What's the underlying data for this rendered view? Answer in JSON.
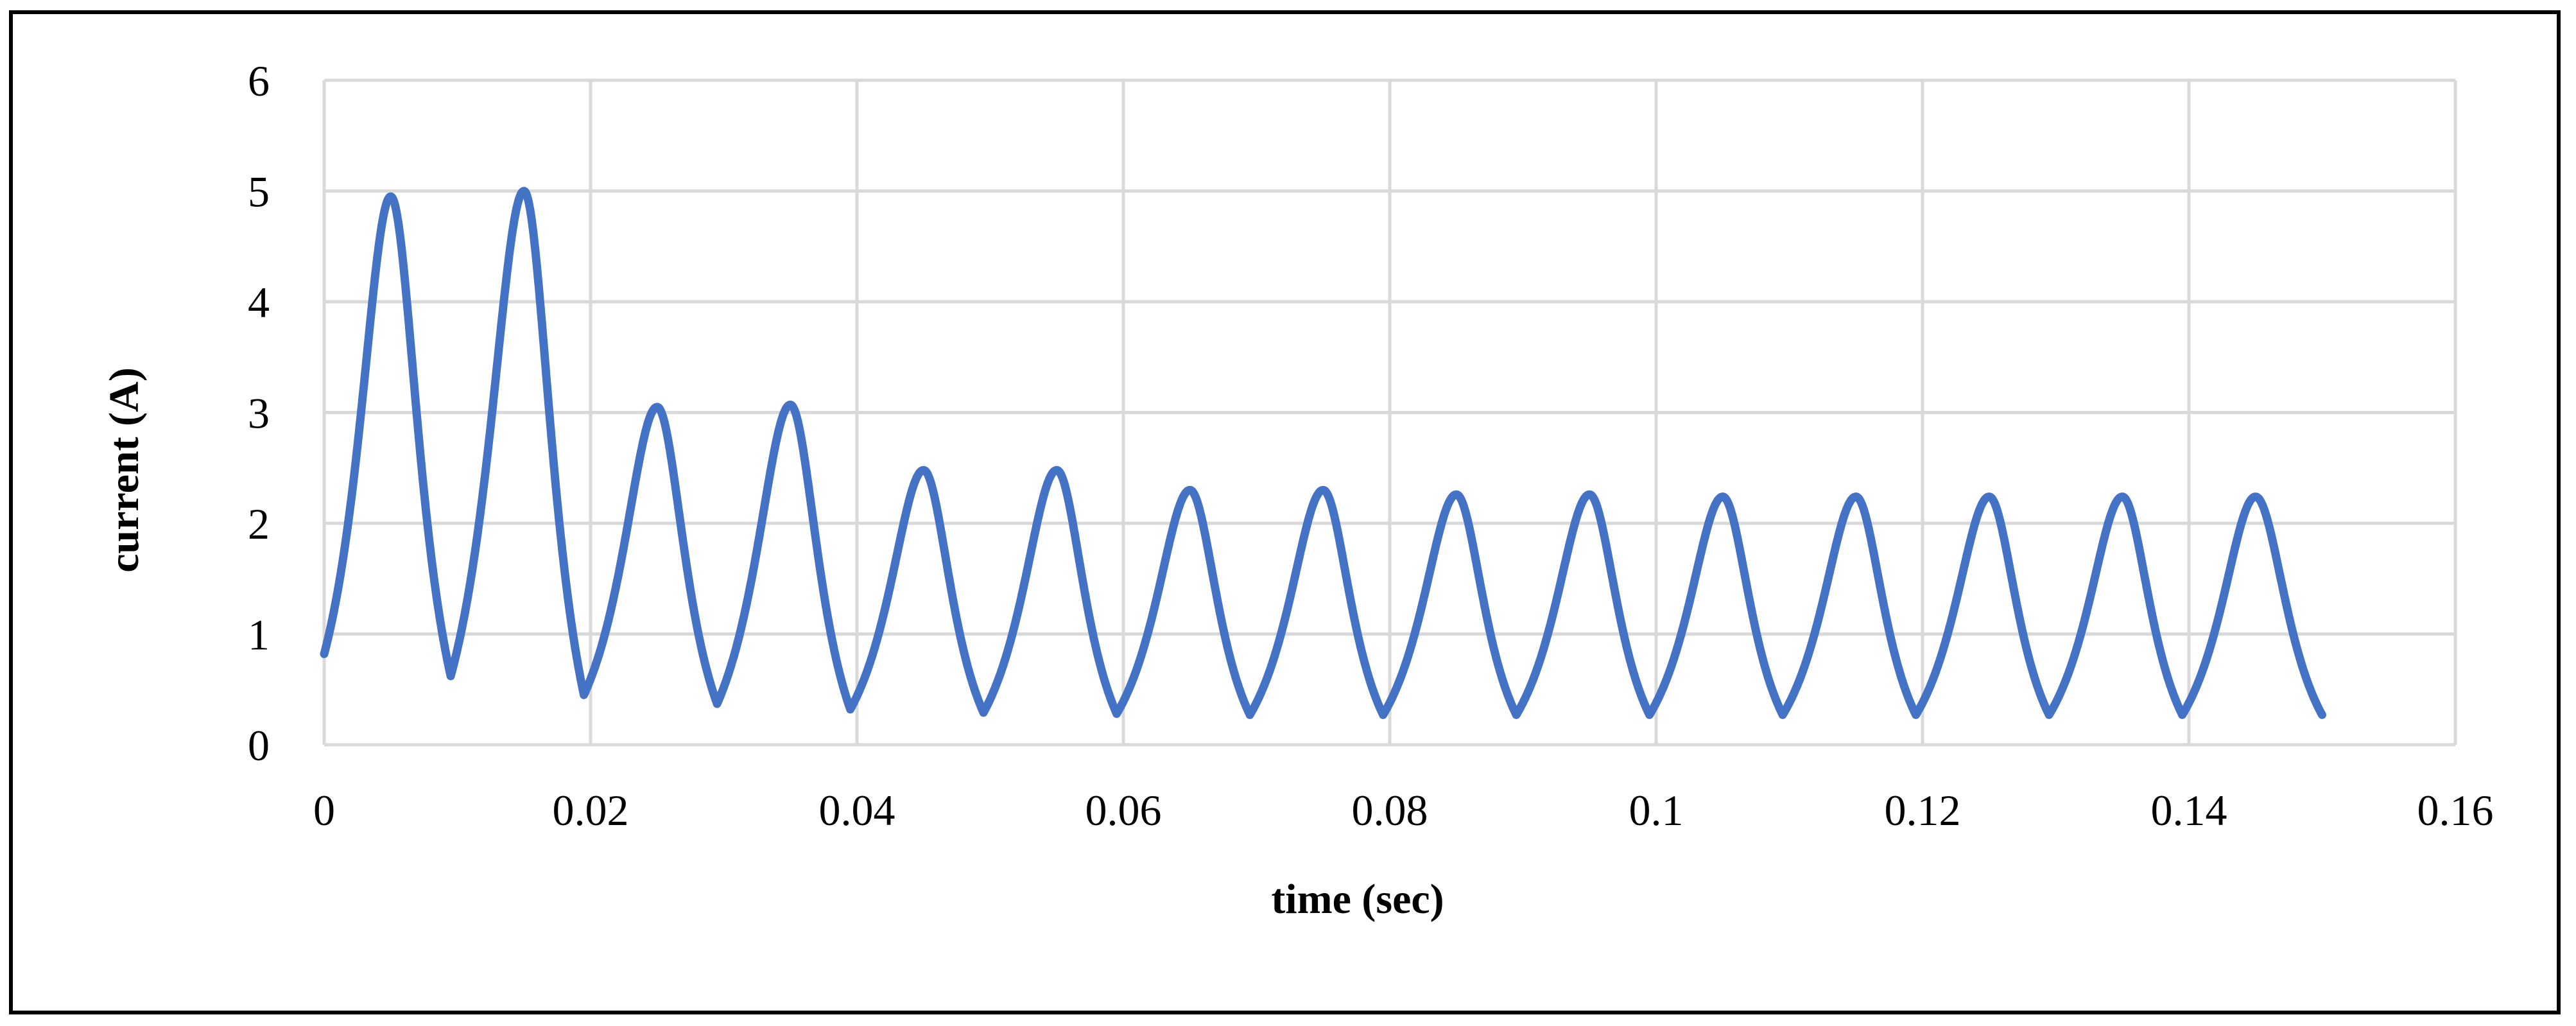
{
  "chart_data": {
    "type": "line",
    "title": "",
    "xlabel": "time (sec)",
    "ylabel": "current (A)",
    "xlim": [
      0,
      0.16
    ],
    "ylim": [
      0,
      6
    ],
    "xticks": [
      "0",
      "0.02",
      "0.04",
      "0.06",
      "0.08",
      "0.1",
      "0.12",
      "0.14",
      "0.16"
    ],
    "yticks": [
      "0",
      "1",
      "2",
      "3",
      "4",
      "5",
      "6"
    ],
    "grid": true,
    "legend": "none",
    "line_color": "#4472C4",
    "series": [
      {
        "x": [
          0,
          0.005,
          0.0095,
          0.015,
          0.0195,
          0.025,
          0.0295,
          0.035,
          0.0395,
          0.045,
          0.0495,
          0.055,
          0.0595,
          0.065,
          0.0695,
          0.075,
          0.0795,
          0.085,
          0.0895,
          0.095,
          0.0995,
          0.105,
          0.1095,
          0.115,
          0.1195,
          0.125,
          0.1295,
          0.135,
          0.1395,
          0.145,
          0.15
        ],
        "values": [
          0.82,
          4.95,
          0.62,
          5.0,
          0.45,
          3.05,
          0.37,
          3.07,
          0.32,
          2.48,
          0.29,
          2.48,
          0.28,
          2.3,
          0.27,
          2.3,
          0.27,
          2.26,
          0.27,
          2.26,
          0.27,
          2.24,
          0.27,
          2.24,
          0.27,
          2.24,
          0.27,
          2.24,
          0.27,
          2.24,
          0.27
        ]
      }
    ]
  }
}
